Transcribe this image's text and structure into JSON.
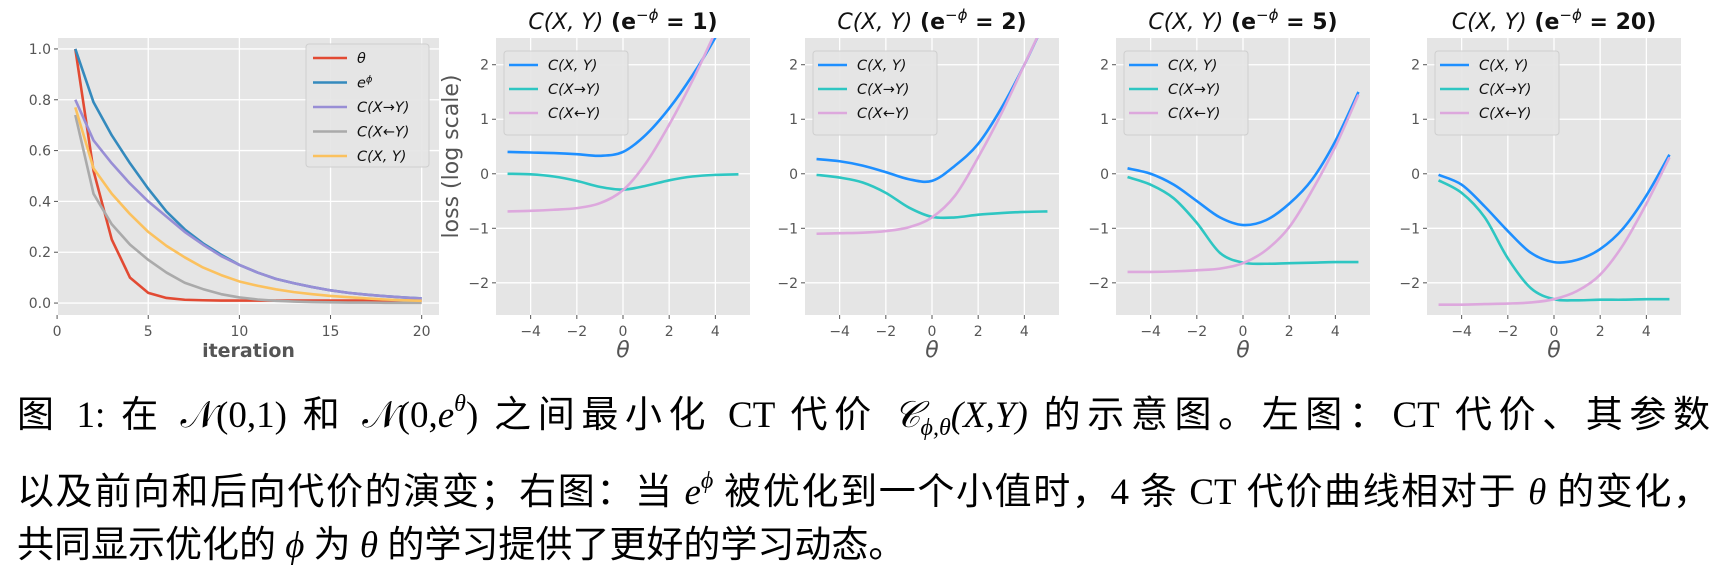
{
  "chart_data": [
    {
      "type": "line",
      "title": "",
      "xlabel": "iteration",
      "ylabel": "",
      "xlim": [
        0.05,
        20.95
      ],
      "ylim": [
        -0.047,
        1.043
      ],
      "xticks": [
        0,
        5,
        10,
        15,
        20
      ],
      "yticks": [
        0.0,
        0.2,
        0.4,
        0.6,
        0.8,
        1.0
      ],
      "ytick_labels": [
        "0.0",
        "0.2",
        "0.4",
        "0.6",
        "0.8",
        "1.0"
      ],
      "grid": true,
      "legend_position": "top-right",
      "x": [
        1,
        2,
        3,
        4,
        5,
        6,
        7,
        8,
        9,
        10,
        11,
        12,
        13,
        14,
        15,
        16,
        17,
        18,
        19,
        20
      ],
      "series": [
        {
          "name": "θ",
          "sup": "",
          "color": "#E24A33",
          "values": [
            1.0,
            0.52,
            0.25,
            0.1,
            0.04,
            0.02,
            0.013,
            0.011,
            0.01,
            0.01,
            0.01,
            0.01,
            0.01,
            0.01,
            0.01,
            0.01,
            0.01,
            0.01,
            0.01,
            0.01
          ]
        },
        {
          "name": "e",
          "sup": "ϕ",
          "color": "#348ABD",
          "values": [
            1.0,
            0.79,
            0.66,
            0.55,
            0.45,
            0.36,
            0.29,
            0.235,
            0.19,
            0.15,
            0.12,
            0.095,
            0.078,
            0.063,
            0.05,
            0.04,
            0.033,
            0.027,
            0.022,
            0.018
          ]
        },
        {
          "name": "C(X→Y)",
          "sup": "",
          "color": "#988ED5",
          "values": [
            0.8,
            0.64,
            0.55,
            0.47,
            0.4,
            0.34,
            0.28,
            0.23,
            0.185,
            0.15,
            0.12,
            0.095,
            0.078,
            0.063,
            0.05,
            0.04,
            0.033,
            0.027,
            0.022,
            0.018
          ]
        },
        {
          "name": "C(X←Y)",
          "sup": "",
          "color": "#AAAAAA",
          "values": [
            0.74,
            0.43,
            0.31,
            0.23,
            0.17,
            0.12,
            0.08,
            0.055,
            0.035,
            0.022,
            0.014,
            0.009,
            0.006,
            0.004,
            0.003,
            0.002,
            0.002,
            0.001,
            0.001,
            0.001
          ]
        },
        {
          "name": "C(X, Y)",
          "sup": "",
          "color": "#FBC15E",
          "values": [
            0.77,
            0.53,
            0.43,
            0.35,
            0.28,
            0.225,
            0.18,
            0.14,
            0.11,
            0.085,
            0.068,
            0.054,
            0.043,
            0.035,
            0.028,
            0.023,
            0.018,
            0.014,
            0.011,
            0.009
          ]
        }
      ]
    },
    {
      "type": "line",
      "title": {
        "main": "C(X, Y)",
        "open": " (e",
        "sup": "−ϕ",
        "close": " = 1)"
      },
      "xlabel": "θ",
      "ylabel": "loss (log scale)",
      "xlim": [
        -5.5,
        5.5
      ],
      "ylim": [
        -2.59,
        2.49
      ],
      "xticks": [
        -4,
        -2,
        0,
        2,
        4
      ],
      "yticks": [
        -2,
        -1,
        0,
        1,
        2
      ],
      "grid": true,
      "legend_position": "top-left",
      "x": [
        -5,
        -4,
        -3,
        -2,
        -1,
        0,
        1,
        2,
        3,
        4,
        5
      ],
      "series": [
        {
          "name": "C(X, Y)",
          "color": "#1E8FFF",
          "values": [
            0.4,
            0.39,
            0.38,
            0.36,
            0.33,
            0.4,
            0.72,
            1.2,
            1.8,
            2.5,
            3.3
          ]
        },
        {
          "name": "C(X→Y)",
          "color": "#2EC6C2",
          "values": [
            0.0,
            -0.01,
            -0.05,
            -0.13,
            -0.24,
            -0.29,
            -0.22,
            -0.12,
            -0.05,
            -0.02,
            -0.01
          ]
        },
        {
          "name": "C(X←Y)",
          "color": "#DDA8DD",
          "values": [
            -0.69,
            -0.68,
            -0.66,
            -0.63,
            -0.54,
            -0.3,
            0.2,
            0.9,
            1.7,
            2.6,
            3.5
          ]
        }
      ]
    },
    {
      "type": "line",
      "title": {
        "main": "C(X, Y)",
        "open": " (e",
        "sup": "−ϕ",
        "close": " = 2)"
      },
      "xlabel": "θ",
      "ylabel": "",
      "xlim": [
        -5.5,
        5.5
      ],
      "ylim": [
        -2.59,
        2.49
      ],
      "xticks": [
        -4,
        -2,
        0,
        2,
        4
      ],
      "yticks": [
        -2,
        -1,
        0,
        1,
        2
      ],
      "grid": true,
      "legend_position": "top-left",
      "x": [
        -5,
        -4,
        -3,
        -2,
        -1,
        0,
        1,
        2,
        3,
        4,
        5
      ],
      "series": [
        {
          "name": "C(X, Y)",
          "color": "#1E8FFF",
          "values": [
            0.27,
            0.23,
            0.15,
            0.03,
            -0.1,
            -0.13,
            0.15,
            0.55,
            1.2,
            2.0,
            2.9
          ]
        },
        {
          "name": "C(X→Y)",
          "color": "#2EC6C2",
          "values": [
            -0.02,
            -0.07,
            -0.16,
            -0.35,
            -0.62,
            -0.79,
            -0.8,
            -0.75,
            -0.72,
            -0.7,
            -0.69
          ]
        },
        {
          "name": "C(X←Y)",
          "color": "#DDA8DD",
          "values": [
            -1.1,
            -1.09,
            -1.08,
            -1.05,
            -0.98,
            -0.8,
            -0.4,
            0.3,
            1.1,
            2.0,
            2.9
          ]
        }
      ]
    },
    {
      "type": "line",
      "title": {
        "main": "C(X, Y)",
        "open": " (e",
        "sup": "−ϕ",
        "close": " = 5)"
      },
      "xlabel": "θ",
      "ylabel": "",
      "xlim": [
        -5.5,
        5.5
      ],
      "ylim": [
        -2.59,
        2.49
      ],
      "xticks": [
        -4,
        -2,
        0,
        2,
        4
      ],
      "yticks": [
        -2,
        -1,
        0,
        1,
        2
      ],
      "grid": true,
      "legend_position": "top-left",
      "x": [
        -5,
        -4,
        -3,
        -2,
        -1,
        0,
        1,
        2,
        3,
        4,
        5
      ],
      "series": [
        {
          "name": "C(X, Y)",
          "color": "#1E8FFF",
          "values": [
            0.1,
            0.0,
            -0.2,
            -0.5,
            -0.8,
            -0.94,
            -0.85,
            -0.55,
            -0.1,
            0.6,
            1.5
          ]
        },
        {
          "name": "C(X→Y)",
          "color": "#2EC6C2",
          "values": [
            -0.06,
            -0.2,
            -0.45,
            -0.9,
            -1.45,
            -1.63,
            -1.65,
            -1.64,
            -1.63,
            -1.62,
            -1.62
          ]
        },
        {
          "name": "C(X←Y)",
          "color": "#DDA8DD",
          "values": [
            -1.8,
            -1.8,
            -1.79,
            -1.77,
            -1.74,
            -1.64,
            -1.4,
            -0.98,
            -0.3,
            0.5,
            1.45
          ]
        }
      ]
    },
    {
      "type": "line",
      "title": {
        "main": "C(X, Y)",
        "open": " (e",
        "sup": "−ϕ",
        "close": " = 20)"
      },
      "xlabel": "θ",
      "ylabel": "",
      "xlim": [
        -5.5,
        5.5
      ],
      "ylim": [
        -2.59,
        2.49
      ],
      "xticks": [
        -4,
        -2,
        0,
        2,
        4
      ],
      "yticks": [
        -2,
        -1,
        0,
        1,
        2
      ],
      "grid": true,
      "legend_position": "top-left",
      "x": [
        -5,
        -4,
        -3,
        -2,
        -1,
        0,
        1,
        2,
        3,
        4,
        5
      ],
      "series": [
        {
          "name": "C(X, Y)",
          "color": "#1E8FFF",
          "values": [
            -0.02,
            -0.2,
            -0.6,
            -1.05,
            -1.45,
            -1.62,
            -1.58,
            -1.38,
            -1.0,
            -0.4,
            0.35
          ]
        },
        {
          "name": "C(X→Y)",
          "color": "#2EC6C2",
          "values": [
            -0.12,
            -0.35,
            -0.8,
            -1.55,
            -2.1,
            -2.3,
            -2.32,
            -2.31,
            -2.31,
            -2.3,
            -2.3
          ]
        },
        {
          "name": "C(X←Y)",
          "color": "#DDA8DD",
          "values": [
            -2.4,
            -2.4,
            -2.39,
            -2.38,
            -2.36,
            -2.3,
            -2.15,
            -1.85,
            -1.3,
            -0.55,
            0.3
          ]
        }
      ]
    }
  ],
  "caption": {
    "lines": [
      [
        {
          "t": "图 1: 在 "
        },
        {
          "t": "𝒩(0,1)"
        },
        {
          "t": " 和 "
        },
        {
          "t": "𝒩(0,"
        },
        {
          "t": "e",
          "s": "i"
        },
        {
          "t": "θ",
          "s": "sup"
        },
        {
          "t": ")"
        },
        {
          "t": " 之间最小化 CT 代价 "
        },
        {
          "t": "𝒞",
          "s": "i"
        },
        {
          "t": "ϕ,θ",
          "s": "sub"
        },
        {
          "t": "(X,Y)",
          "s": "i"
        },
        {
          "t": " 的示意图。左图：CT 代价、其参数"
        }
      ],
      [
        {
          "t": "以及前向和后向代价的演变；右图：当 "
        },
        {
          "t": "e",
          "s": "i"
        },
        {
          "t": "ϕ",
          "s": "sup"
        },
        {
          "t": " 被优化到一个小值时，4 条 CT 代价曲线相对于 "
        },
        {
          "t": "θ",
          "s": "i"
        },
        {
          "t": " 的变化，"
        }
      ],
      [
        {
          "t": "共同显示优化的 "
        },
        {
          "t": "ϕ",
          "s": "i"
        },
        {
          "t": " 为 "
        },
        {
          "t": "θ",
          "s": "i"
        },
        {
          "t": " 的学习提供了更好的学习动态。"
        }
      ]
    ]
  }
}
